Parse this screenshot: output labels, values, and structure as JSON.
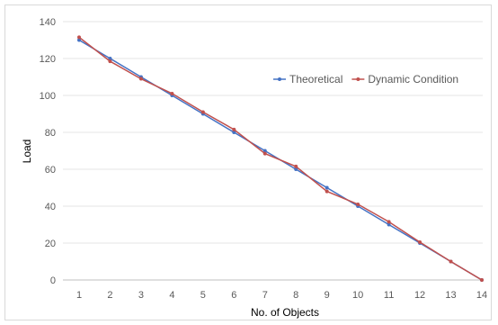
{
  "chart_data": {
    "type": "line",
    "title": "",
    "xlabel": "No. of Objects",
    "ylabel": "Load",
    "x": [
      1,
      2,
      3,
      4,
      5,
      6,
      7,
      8,
      9,
      10,
      11,
      12,
      13,
      14
    ],
    "ylim": [
      0,
      140
    ],
    "yticks": [
      0,
      20,
      40,
      60,
      80,
      100,
      120,
      140
    ],
    "grid": "horizontal",
    "legend_position": "top-right",
    "series": [
      {
        "name": "Theoretical",
        "color": "#4472C4",
        "values": [
          130,
          120,
          110,
          100,
          90,
          80,
          70,
          60,
          50,
          40,
          30,
          20,
          10,
          0
        ]
      },
      {
        "name": "Dynamic Condition",
        "color": "#C0504D",
        "values": [
          131.5,
          118.5,
          109,
          101,
          91,
          81.5,
          68.5,
          61.5,
          48,
          41,
          31.5,
          20.5,
          10,
          0
        ]
      }
    ]
  }
}
